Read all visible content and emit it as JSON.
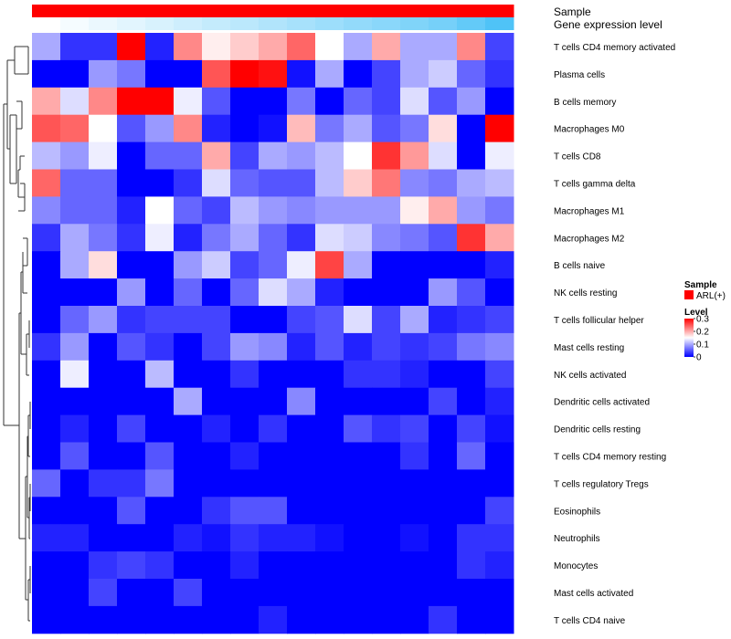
{
  "chart_data": {
    "type": "heatmap",
    "title": "",
    "annotations": [
      {
        "name": "Sample",
        "kind": "categorical",
        "label": "ARL(+)",
        "color": "#ff0000"
      },
      {
        "name": "Gene expression level",
        "kind": "continuous",
        "low_color": "#ffffff",
        "high_color": "#4fc3f7"
      }
    ],
    "rows": [
      "T cells CD4 memory activated",
      "Plasma cells",
      "B cells memory",
      "Macrophages M0",
      "T cells CD8",
      "T cells gamma delta",
      "Macrophages M1",
      "Macrophages M2",
      "B cells naive",
      "NK cells resting",
      "T cells follicular helper",
      "Mast cells resting",
      "NK cells activated",
      "Dendritic cells activated",
      "Dendritic cells resting",
      "T cells CD4 memory resting",
      "T cells regulatory  Tregs",
      "Eosinophils",
      "Neutrophils",
      "Monocytes",
      "Mast cells activated",
      "T cells CD4 naive"
    ],
    "n_columns": 17,
    "values": [
      [
        0.1,
        0.03,
        0.03,
        0.3,
        0.02,
        0.22,
        0.16,
        0.18,
        0.2,
        0.24,
        0.15,
        0.1,
        0.2,
        0.1,
        0.1,
        0.22,
        0.04
      ],
      [
        0.0,
        0.0,
        0.09,
        0.07,
        0.0,
        0.0,
        0.25,
        0.3,
        0.29,
        0.01,
        0.1,
        0.0,
        0.04,
        0.1,
        0.12,
        0.06,
        0.03
      ],
      [
        0.2,
        0.13,
        0.22,
        0.3,
        0.3,
        0.14,
        0.05,
        0.0,
        0.0,
        0.07,
        0.0,
        0.06,
        0.04,
        0.13,
        0.05,
        0.09,
        0.0
      ],
      [
        0.25,
        0.24,
        0.15,
        0.05,
        0.09,
        0.22,
        0.02,
        0.0,
        0.01,
        0.19,
        0.07,
        0.1,
        0.05,
        0.07,
        0.17,
        0.0,
        0.3
      ],
      [
        0.11,
        0.09,
        0.14,
        0.0,
        0.06,
        0.06,
        0.2,
        0.04,
        0.1,
        0.09,
        0.11,
        0.15,
        0.27,
        0.21,
        0.13,
        0.0,
        0.14
      ],
      [
        0.24,
        0.06,
        0.06,
        0.0,
        0.0,
        0.03,
        0.13,
        0.06,
        0.05,
        0.05,
        0.11,
        0.18,
        0.23,
        0.08,
        0.07,
        0.1,
        0.11
      ],
      [
        0.08,
        0.06,
        0.06,
        0.02,
        0.15,
        0.06,
        0.04,
        0.11,
        0.09,
        0.08,
        0.09,
        0.09,
        0.09,
        0.16,
        0.2,
        0.09,
        0.07
      ],
      [
        0.03,
        0.1,
        0.07,
        0.03,
        0.14,
        0.02,
        0.07,
        0.1,
        0.06,
        0.03,
        0.13,
        0.12,
        0.08,
        0.07,
        0.05,
        0.27,
        0.2
      ],
      [
        0.0,
        0.1,
        0.17,
        0.0,
        0.0,
        0.09,
        0.12,
        0.04,
        0.06,
        0.14,
        0.26,
        0.1,
        0.0,
        0.0,
        0.0,
        0.0,
        0.02
      ],
      [
        0.0,
        0.0,
        0.0,
        0.09,
        0.0,
        0.06,
        0.0,
        0.06,
        0.13,
        0.1,
        0.02,
        0.0,
        0.0,
        0.0,
        0.09,
        0.05,
        0.0
      ],
      [
        0.0,
        0.06,
        0.09,
        0.03,
        0.04,
        0.04,
        0.04,
        0.0,
        0.0,
        0.04,
        0.05,
        0.13,
        0.04,
        0.1,
        0.02,
        0.03,
        0.04
      ],
      [
        0.03,
        0.09,
        0.0,
        0.05,
        0.03,
        0.0,
        0.04,
        0.09,
        0.08,
        0.02,
        0.05,
        0.02,
        0.04,
        0.03,
        0.04,
        0.07,
        0.08
      ],
      [
        0.0,
        0.14,
        0.0,
        0.0,
        0.11,
        0.0,
        0.0,
        0.03,
        0.0,
        0.0,
        0.0,
        0.03,
        0.03,
        0.02,
        0.0,
        0.0,
        0.04
      ],
      [
        0.0,
        0.0,
        0.0,
        0.0,
        0.0,
        0.1,
        0.0,
        0.0,
        0.0,
        0.08,
        0.0,
        0.0,
        0.0,
        0.0,
        0.04,
        0.0,
        0.02
      ],
      [
        0.0,
        0.02,
        0.0,
        0.04,
        0.0,
        0.0,
        0.02,
        0.0,
        0.03,
        0.0,
        0.0,
        0.05,
        0.03,
        0.04,
        0.0,
        0.04,
        0.01
      ],
      [
        0.0,
        0.05,
        0.0,
        0.0,
        0.05,
        0.0,
        0.0,
        0.02,
        0.0,
        0.0,
        0.0,
        0.0,
        0.0,
        0.03,
        0.0,
        0.06,
        0.0
      ],
      [
        0.06,
        0.0,
        0.03,
        0.03,
        0.07,
        0.0,
        0.0,
        0.0,
        0.0,
        0.0,
        0.0,
        0.0,
        0.0,
        0.0,
        0.0,
        0.0,
        0.0
      ],
      [
        0.0,
        0.0,
        0.0,
        0.05,
        0.0,
        0.0,
        0.03,
        0.05,
        0.05,
        0.0,
        0.0,
        0.0,
        0.0,
        0.0,
        0.0,
        0.0,
        0.04
      ],
      [
        0.02,
        0.02,
        0.0,
        0.0,
        0.0,
        0.02,
        0.01,
        0.03,
        0.02,
        0.02,
        0.01,
        0.0,
        0.0,
        0.01,
        0.0,
        0.03,
        0.03
      ],
      [
        0.0,
        0.0,
        0.03,
        0.04,
        0.03,
        0.0,
        0.0,
        0.02,
        0.0,
        0.0,
        0.0,
        0.0,
        0.0,
        0.0,
        0.0,
        0.03,
        0.02
      ],
      [
        0.0,
        0.0,
        0.04,
        0.0,
        0.0,
        0.04,
        0.0,
        0.0,
        0.0,
        0.0,
        0.0,
        0.0,
        0.0,
        0.0,
        0.0,
        0.0,
        0.0
      ],
      [
        0.0,
        0.0,
        0.0,
        0.0,
        0.0,
        0.0,
        0.0,
        0.0,
        0.02,
        0.0,
        0.0,
        0.0,
        0.0,
        0.0,
        0.03,
        0.0,
        0.0
      ]
    ],
    "gene_expression_level": [
      0.0,
      0.05,
      0.1,
      0.15,
      0.2,
      0.25,
      0.3,
      0.35,
      0.4,
      0.45,
      0.5,
      0.55,
      0.6,
      0.65,
      0.7,
      0.8,
      0.9
    ],
    "color_scale": {
      "min": 0,
      "mid": 0.15,
      "max": 0.3,
      "low": "#0000ff",
      "mid_color": "#ffffff",
      "high": "#ff0000"
    },
    "legend": {
      "sample_title": "Sample",
      "sample_entry": "ARL(+)",
      "level_title": "Level",
      "level_ticks": [
        0.3,
        0.2,
        0.1,
        0
      ],
      "level_tick_labels": [
        "0.3",
        "0.2",
        "0.1",
        "0"
      ],
      "placement": "right"
    },
    "dendrogram": "rows"
  }
}
